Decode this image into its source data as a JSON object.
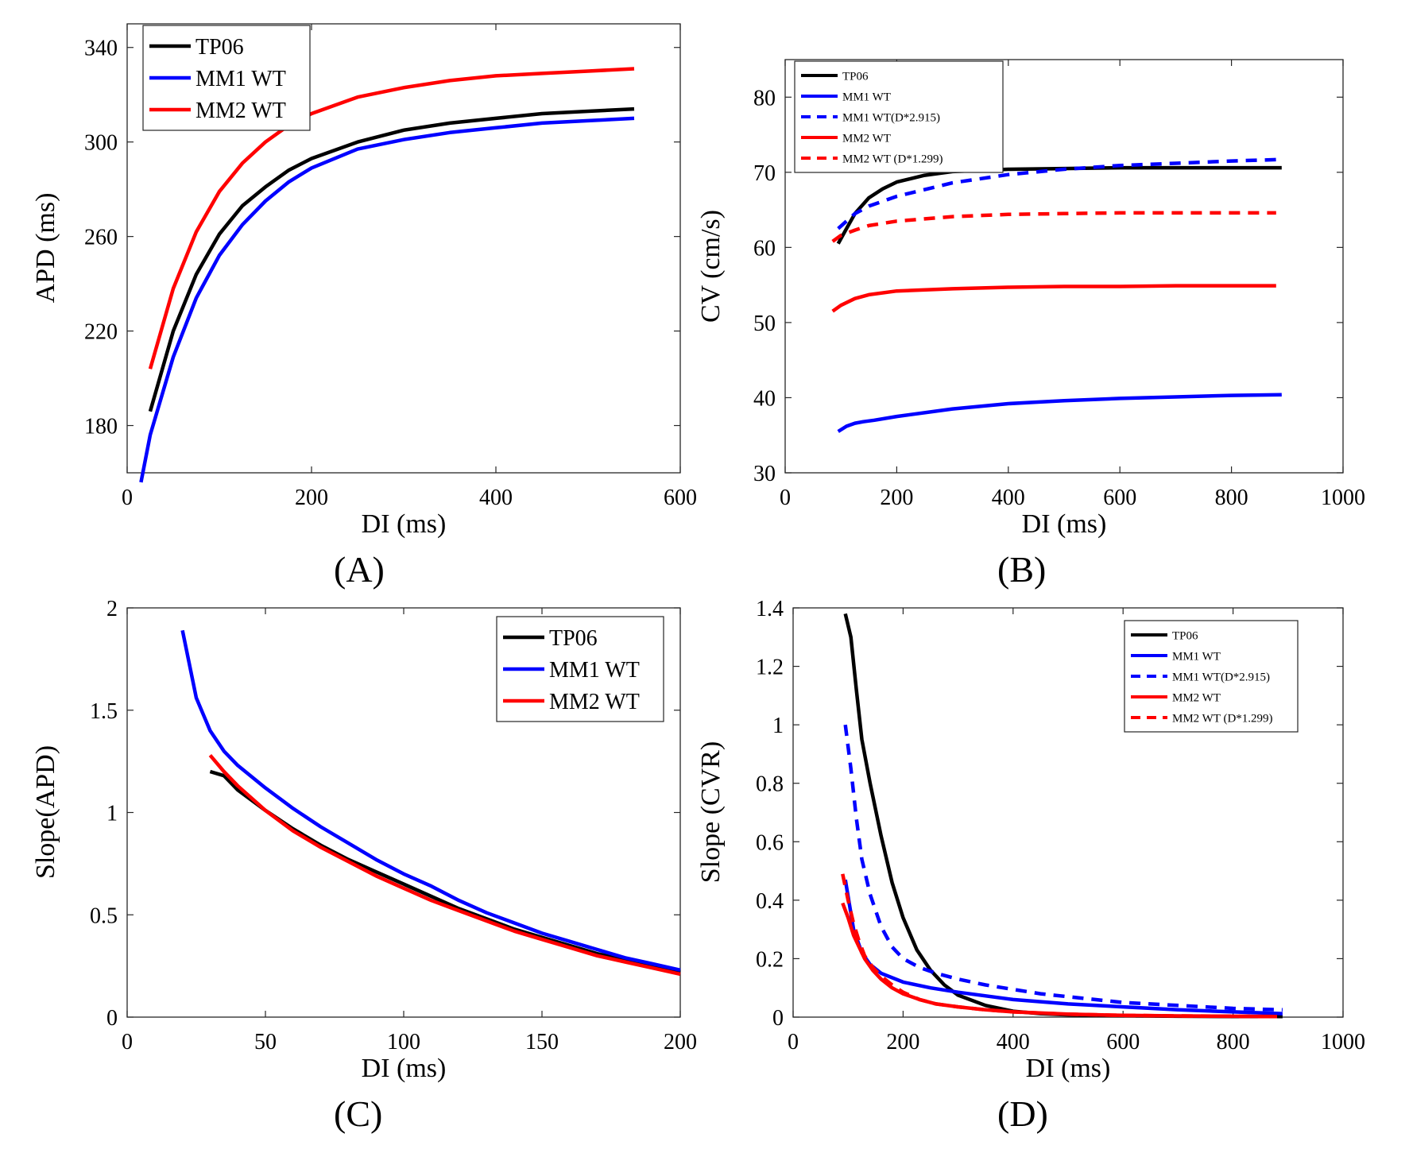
{
  "colors": {
    "black": "#000000",
    "blue": "#0000ff",
    "red": "#ff0000"
  },
  "panel_labels": {
    "a": "(A)",
    "b": "(B)",
    "c": "(C)",
    "d": "(D)"
  },
  "chart_data": [
    {
      "id": "A",
      "type": "line",
      "xlabel": "DI (ms)",
      "ylabel": "APD (ms)",
      "xlim": [
        0,
        600
      ],
      "ylim": [
        160,
        350
      ],
      "xticks": [
        0,
        200,
        400,
        600
      ],
      "yticks": [
        180,
        220,
        260,
        300,
        340
      ],
      "grid": false,
      "legend_position": "top-left",
      "legend_size": "large",
      "series": [
        {
          "name": "TP06",
          "color": "#000000",
          "dash": false,
          "x": [
            25,
            50,
            75,
            100,
            125,
            150,
            175,
            200,
            250,
            300,
            350,
            400,
            450,
            500,
            550
          ],
          "y": [
            186,
            220,
            244,
            261,
            273,
            281,
            288,
            293,
            300,
            305,
            308,
            310,
            312,
            313,
            314
          ]
        },
        {
          "name": "MM1 WT",
          "color": "#0000ff",
          "dash": false,
          "x": [
            15,
            25,
            50,
            75,
            100,
            125,
            150,
            175,
            200,
            250,
            300,
            350,
            400,
            450,
            500,
            550
          ],
          "y": [
            156,
            176,
            209,
            234,
            252,
            265,
            275,
            283,
            289,
            297,
            301,
            304,
            306,
            308,
            309,
            310
          ]
        },
        {
          "name": "MM2 WT",
          "color": "#ff0000",
          "dash": false,
          "x": [
            25,
            50,
            75,
            100,
            125,
            150,
            175,
            200,
            250,
            300,
            350,
            400,
            450,
            500,
            550
          ],
          "y": [
            204,
            238,
            262,
            279,
            291,
            300,
            307,
            312,
            319,
            323,
            326,
            328,
            329,
            330,
            331
          ]
        }
      ]
    },
    {
      "id": "B",
      "type": "line",
      "xlabel": "DI (ms)",
      "ylabel": "CV (cm/s)",
      "xlim": [
        0,
        1000
      ],
      "ylim": [
        30,
        85
      ],
      "xticks": [
        0,
        200,
        400,
        600,
        800,
        1000
      ],
      "yticks": [
        30,
        40,
        50,
        60,
        70,
        80
      ],
      "grid": false,
      "legend_position": "top-left",
      "legend_size": "small",
      "series": [
        {
          "name": "TP06",
          "color": "#000000",
          "dash": false,
          "x": [
            95,
            110,
            125,
            150,
            175,
            200,
            250,
            300,
            400,
            500,
            600,
            700,
            800,
            890
          ],
          "y": [
            60.5,
            62.5,
            64.5,
            66.6,
            67.8,
            68.7,
            69.6,
            70.1,
            70.4,
            70.5,
            70.6,
            70.6,
            70.6,
            70.6
          ]
        },
        {
          "name": "MM1 WT",
          "color": "#0000ff",
          "dash": false,
          "x": [
            95,
            110,
            125,
            140,
            160,
            200,
            300,
            400,
            500,
            600,
            700,
            800,
            890
          ],
          "y": [
            35.5,
            36.2,
            36.6,
            36.8,
            37.0,
            37.5,
            38.5,
            39.2,
            39.6,
            39.9,
            40.1,
            40.3,
            40.4
          ]
        },
        {
          "name": "MM1 WT(D*2.915)",
          "color": "#0000ff",
          "dash": true,
          "x": [
            95,
            110,
            125,
            150,
            200,
            300,
            400,
            500,
            600,
            700,
            800,
            890
          ],
          "y": [
            62.5,
            63.5,
            64.5,
            65.5,
            66.8,
            68.6,
            69.7,
            70.4,
            70.9,
            71.2,
            71.5,
            71.7
          ]
        },
        {
          "name": "MM2 WT",
          "color": "#ff0000",
          "dash": false,
          "x": [
            85,
            100,
            125,
            150,
            200,
            300,
            400,
            500,
            600,
            700,
            800,
            880
          ],
          "y": [
            51.5,
            52.3,
            53.2,
            53.7,
            54.2,
            54.5,
            54.7,
            54.8,
            54.8,
            54.9,
            54.9,
            54.9
          ]
        },
        {
          "name": "MM2 WT (D*1.299)",
          "color": "#ff0000",
          "dash": true,
          "x": [
            85,
            100,
            125,
            150,
            200,
            300,
            400,
            500,
            600,
            700,
            800,
            880
          ],
          "y": [
            60.8,
            61.6,
            62.3,
            62.9,
            63.5,
            64.1,
            64.4,
            64.5,
            64.6,
            64.6,
            64.6,
            64.6
          ]
        }
      ]
    },
    {
      "id": "C",
      "type": "line",
      "xlabel": "DI (ms)",
      "ylabel": "Slope(APD)",
      "xlim": [
        0,
        200
      ],
      "ylim": [
        0,
        2
      ],
      "xticks": [
        0,
        50,
        100,
        150,
        200
      ],
      "yticks": [
        0,
        0.5,
        1,
        1.5,
        2
      ],
      "grid": false,
      "legend_position": "top-right",
      "legend_size": "large",
      "series": [
        {
          "name": "TP06",
          "color": "#000000",
          "dash": false,
          "x": [
            30,
            35,
            40,
            50,
            60,
            70,
            80,
            90,
            100,
            110,
            120,
            130,
            140,
            150,
            160,
            170,
            180,
            190,
            200
          ],
          "y": [
            1.2,
            1.18,
            1.11,
            1.01,
            0.92,
            0.84,
            0.77,
            0.71,
            0.65,
            0.59,
            0.53,
            0.48,
            0.43,
            0.39,
            0.35,
            0.31,
            0.28,
            0.25,
            0.22
          ]
        },
        {
          "name": "MM1 WT",
          "color": "#0000ff",
          "dash": false,
          "x": [
            20,
            25,
            30,
            35,
            40,
            50,
            60,
            70,
            80,
            90,
            100,
            110,
            120,
            130,
            140,
            150,
            160,
            170,
            180,
            190,
            200
          ],
          "y": [
            1.89,
            1.56,
            1.4,
            1.3,
            1.23,
            1.12,
            1.02,
            0.93,
            0.85,
            0.77,
            0.7,
            0.64,
            0.57,
            0.51,
            0.46,
            0.41,
            0.37,
            0.33,
            0.29,
            0.26,
            0.23
          ]
        },
        {
          "name": "MM2 WT",
          "color": "#ff0000",
          "dash": false,
          "x": [
            30,
            35,
            40,
            50,
            60,
            70,
            80,
            90,
            100,
            110,
            120,
            130,
            140,
            150,
            160,
            170,
            180,
            190,
            200
          ],
          "y": [
            1.28,
            1.2,
            1.13,
            1.01,
            0.91,
            0.83,
            0.76,
            0.69,
            0.63,
            0.57,
            0.52,
            0.47,
            0.42,
            0.38,
            0.34,
            0.3,
            0.27,
            0.24,
            0.21
          ]
        }
      ]
    },
    {
      "id": "D",
      "type": "line",
      "xlabel": "DI (ms)",
      "ylabel": "Slope (CVR)",
      "xlim": [
        0,
        1000
      ],
      "ylim": [
        0,
        1.4
      ],
      "xticks": [
        0,
        200,
        400,
        600,
        800,
        1000
      ],
      "yticks": [
        0,
        0.2,
        0.4,
        0.6,
        0.8,
        1,
        1.2,
        1.4
      ],
      "grid": false,
      "legend_position": "top-right",
      "legend_size": "small",
      "series": [
        {
          "name": "TP06",
          "color": "#000000",
          "dash": false,
          "x": [
            95,
            105,
            115,
            125,
            140,
            160,
            180,
            200,
            225,
            250,
            275,
            300,
            350,
            400,
            450,
            500,
            600,
            700,
            800,
            890
          ],
          "y": [
            1.38,
            1.3,
            1.12,
            0.95,
            0.8,
            0.62,
            0.46,
            0.34,
            0.23,
            0.16,
            0.11,
            0.075,
            0.04,
            0.02,
            0.012,
            0.008,
            0.005,
            0.003,
            0.002,
            0.002
          ]
        },
        {
          "name": "MM1 WT",
          "color": "#0000ff",
          "dash": false,
          "x": [
            95,
            110,
            125,
            140,
            160,
            200,
            250,
            300,
            400,
            500,
            600,
            700,
            800,
            890
          ],
          "y": [
            0.47,
            0.3,
            0.22,
            0.18,
            0.15,
            0.12,
            0.1,
            0.085,
            0.06,
            0.045,
            0.035,
            0.025,
            0.018,
            0.012
          ]
        },
        {
          "name": "MM1 WT(D*2.915)",
          "color": "#0000ff",
          "dash": true,
          "x": [
            95,
            105,
            115,
            125,
            140,
            160,
            180,
            200,
            230,
            260,
            300,
            350,
            400,
            450,
            500,
            600,
            700,
            800,
            890
          ],
          "y": [
            1.0,
            0.85,
            0.68,
            0.54,
            0.42,
            0.31,
            0.24,
            0.2,
            0.17,
            0.15,
            0.13,
            0.11,
            0.095,
            0.08,
            0.07,
            0.05,
            0.04,
            0.03,
            0.025
          ]
        },
        {
          "name": "MM2 WT",
          "color": "#ff0000",
          "dash": false,
          "x": [
            90,
            100,
            110,
            120,
            130,
            145,
            160,
            180,
            200,
            230,
            260,
            300,
            350,
            400,
            500,
            600,
            700,
            800,
            880
          ],
          "y": [
            0.39,
            0.34,
            0.28,
            0.24,
            0.2,
            0.16,
            0.13,
            0.1,
            0.08,
            0.06,
            0.045,
            0.035,
            0.025,
            0.018,
            0.01,
            0.006,
            0.004,
            0.003,
            0.002
          ]
        },
        {
          "name": "MM2 WT (D*1.299)",
          "color": "#ff0000",
          "dash": true,
          "x": [
            90,
            100,
            110,
            120,
            130,
            145,
            160,
            180,
            200,
            230,
            260,
            300,
            350,
            400,
            500,
            600,
            700,
            800,
            880
          ],
          "y": [
            0.49,
            0.4,
            0.32,
            0.26,
            0.21,
            0.17,
            0.14,
            0.11,
            0.085,
            0.06,
            0.045,
            0.035,
            0.025,
            0.018,
            0.01,
            0.006,
            0.004,
            0.003,
            0.002
          ]
        }
      ]
    }
  ]
}
